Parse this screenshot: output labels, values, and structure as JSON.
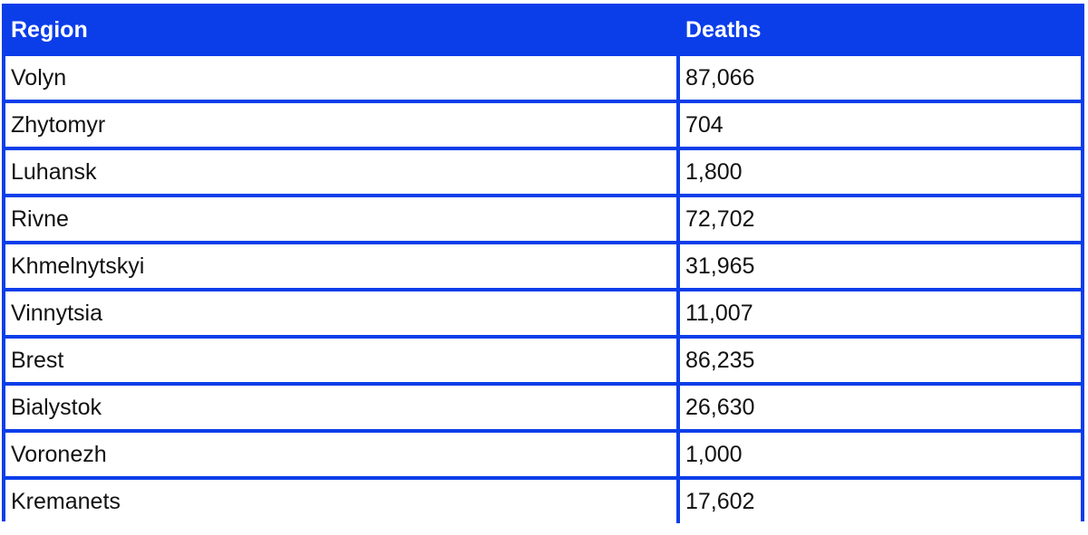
{
  "chart_data": {
    "type": "table",
    "columns": [
      "Region",
      "Deaths"
    ],
    "rows": [
      {
        "region": "Volyn",
        "deaths": "87,066"
      },
      {
        "region": "Zhytomyr",
        "deaths": "704"
      },
      {
        "region": "Luhansk",
        "deaths": "1,800"
      },
      {
        "region": "Rivne",
        "deaths": "72,702"
      },
      {
        "region": "Khmelnytskyi",
        "deaths": "31,965"
      },
      {
        "region": "Vinnytsia",
        "deaths": "11,007"
      },
      {
        "region": "Brest",
        "deaths": "86,235"
      },
      {
        "region": "Bialystok",
        "deaths": "26,630"
      },
      {
        "region": "Voronezh",
        "deaths": "1,000"
      },
      {
        "region": "Kremanets",
        "deaths": "17,602"
      }
    ]
  },
  "colors": {
    "header_background": "#0b3ee9",
    "header_text": "#ffffff",
    "grid_lines": "#0b3ee9",
    "cell_background": "#ffffff",
    "cell_text": "#111111"
  }
}
